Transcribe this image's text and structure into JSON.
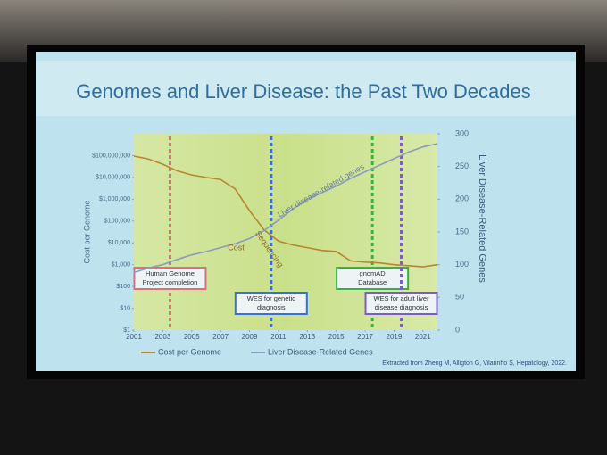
{
  "chart_data": {
    "type": "line",
    "title": "Genomes and Liver Disease: the Past Two Decades",
    "ylabel": "Cost per Genome",
    "y2label": "Liver Disease-Related Genes",
    "ylog": true,
    "x": [
      2001,
      2002,
      2003,
      2004,
      2005,
      2006,
      2007,
      2008,
      2009,
      2010,
      2011,
      2012,
      2013,
      2014,
      2015,
      2016,
      2017,
      2018,
      2019,
      2020,
      2021,
      2022
    ],
    "xlim": [
      2001,
      2022
    ],
    "xticks": [
      2001,
      2003,
      2005,
      2007,
      2009,
      2011,
      2013,
      2015,
      2017,
      2019,
      2021
    ],
    "ylim": [
      1,
      1000000000
    ],
    "yticks": [
      {
        "value": 1,
        "label": "$1"
      },
      {
        "value": 10,
        "label": "$10"
      },
      {
        "value": 100,
        "label": "$100"
      },
      {
        "value": 1000,
        "label": "$1,000"
      },
      {
        "value": 10000,
        "label": "$10,000"
      },
      {
        "value": 100000,
        "label": "$100,000"
      },
      {
        "value": 1000000,
        "label": "$1,000,000"
      },
      {
        "value": 10000000,
        "label": "$10,000,000"
      },
      {
        "value": 100000000,
        "label": "$100,000,000"
      }
    ],
    "y2lim": [
      0,
      300
    ],
    "y2ticks": [
      0,
      50,
      100,
      150,
      200,
      250,
      300
    ],
    "series": [
      {
        "name": "Cost per Genome",
        "color": "#b8862f",
        "values": [
          95000000,
          70000000,
          40000000,
          20000000,
          13000000,
          10000000,
          8000000,
          3000000,
          300000,
          40000,
          12000,
          8000,
          6000,
          4500,
          4000,
          1500,
          1300,
          1200,
          1000,
          900,
          800,
          1000
        ]
      },
      {
        "name": "Liver Disease-Related Genes",
        "color": "#8a9bc2",
        "axis": "y2",
        "values": [
          88,
          95,
          100,
          108,
          115,
          120,
          126,
          132,
          140,
          152,
          168,
          185,
          200,
          210,
          220,
          232,
          242,
          252,
          262,
          272,
          280,
          285
        ]
      }
    ],
    "line_labels": [
      {
        "text": "Sequencing",
        "x": 2009.5,
        "y": 150
      },
      {
        "text": "Cost",
        "x": 2007.5,
        "y": 125
      },
      {
        "text": "Liver disease-related genes",
        "x": 2011,
        "y": 175
      }
    ],
    "events": [
      {
        "x": 2003.5,
        "color": "#d9717d",
        "lines": [
          "Human Genome",
          "Project completion"
        ]
      },
      {
        "x": 2010.5,
        "color": "#3a6fd8",
        "lines": [
          "WES for genetic",
          "diagnosis"
        ]
      },
      {
        "x": 2017.5,
        "color": "#3cb043",
        "lines": [
          "gnomAD",
          "Database"
        ]
      },
      {
        "x": 2019.5,
        "color": "#7a5cc9",
        "lines": [
          "WES for adult liver",
          "disease diagnosis"
        ]
      }
    ],
    "citation": "Extracted from Zheng M, Alligton G, Vilarinho S, Hepatology, 2022."
  }
}
